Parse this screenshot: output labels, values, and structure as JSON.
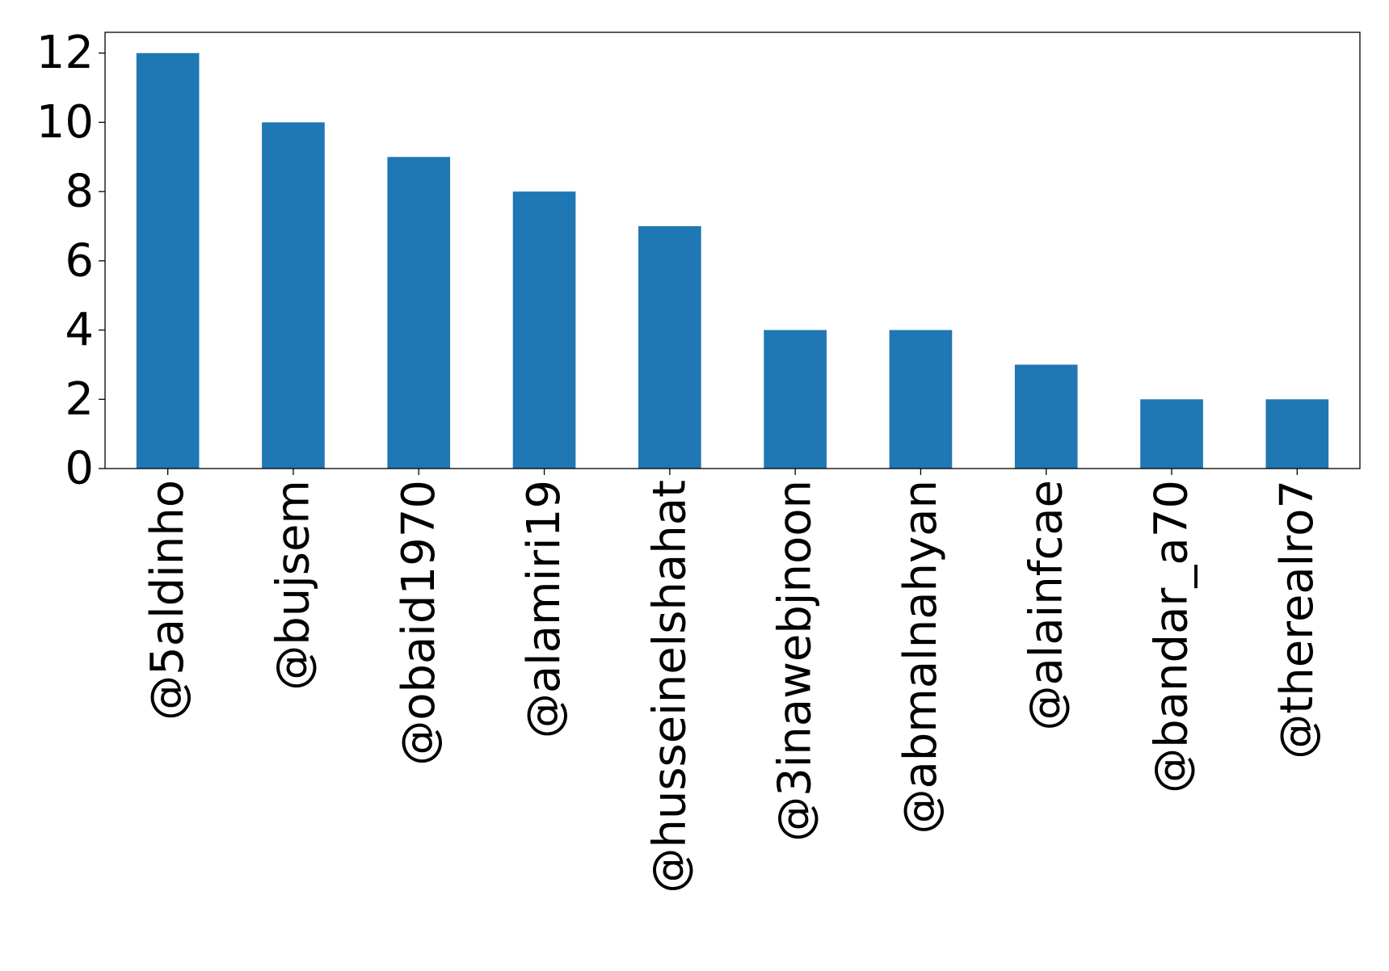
{
  "chart_data": {
    "type": "bar",
    "title": "",
    "xlabel": "",
    "ylabel": "",
    "categories": [
      "@5aldinho",
      "@bujsem",
      "@obaid1970",
      "@alamiri19",
      "@husseinelshahat",
      "@3inawebjnoon",
      "@abmalnahyan",
      "@alainfcae",
      "@bandar_a70",
      "@therealro7"
    ],
    "values": [
      12,
      10,
      9,
      8,
      7,
      4,
      4,
      3,
      2,
      2
    ],
    "ylim": [
      0,
      12.6
    ],
    "yticks": [
      0,
      2,
      4,
      6,
      8,
      10,
      12
    ],
    "ytick_labels": [
      "0",
      "2",
      "4",
      "6",
      "8",
      "10",
      "12"
    ],
    "bar_color": "#1f77b4",
    "grid": false,
    "legend": "none"
  }
}
